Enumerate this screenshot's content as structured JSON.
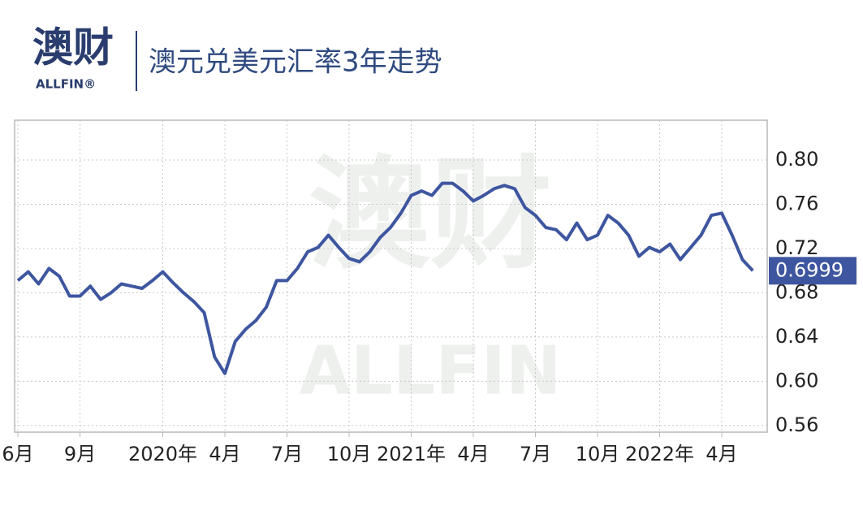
{
  "logo": {
    "name": "澳财",
    "brand": "ALLFIN®"
  },
  "chart_data": {
    "type": "line",
    "title": "澳元兑美元汇率3年走势",
    "watermark": [
      "澳财",
      "ALLFIN"
    ],
    "categories": [
      "6月",
      null,
      null,
      null,
      null,
      null,
      "9月",
      null,
      null,
      null,
      null,
      null,
      null,
      null,
      "2020年",
      null,
      null,
      null,
      null,
      null,
      "4月",
      null,
      null,
      null,
      null,
      null,
      "7月",
      null,
      null,
      null,
      null,
      null,
      "10月",
      null,
      null,
      null,
      null,
      null,
      "2021年",
      null,
      null,
      null,
      null,
      null,
      "4月",
      null,
      null,
      null,
      null,
      null,
      "7月",
      null,
      null,
      null,
      null,
      null,
      "10月",
      null,
      null,
      null,
      null,
      null,
      "2022年",
      null,
      null,
      null,
      null,
      null,
      "4月",
      null,
      null,
      null
    ],
    "series": [
      {
        "color": "#3e56a0",
        "values": [
          0.691,
          0.699,
          0.688,
          0.702,
          0.695,
          0.677,
          0.677,
          0.686,
          0.674,
          0.68,
          0.688,
          0.686,
          0.684,
          0.691,
          0.699,
          0.689,
          0.68,
          0.672,
          0.662,
          0.622,
          0.607,
          0.636,
          0.647,
          0.655,
          0.667,
          0.691,
          0.691,
          0.702,
          0.717,
          0.721,
          0.732,
          0.721,
          0.711,
          0.708,
          0.717,
          0.73,
          0.739,
          0.752,
          0.768,
          0.772,
          0.768,
          0.779,
          0.779,
          0.772,
          0.763,
          0.768,
          0.774,
          0.777,
          0.774,
          0.757,
          0.75,
          0.739,
          0.737,
          0.728,
          0.743,
          0.728,
          0.732,
          0.75,
          0.743,
          0.732,
          0.713,
          0.721,
          0.717,
          0.724,
          0.71,
          0.721,
          0.732,
          0.75,
          0.752,
          0.732,
          0.71,
          0.6999
        ]
      }
    ],
    "ylim": [
      0.554,
      0.836
    ],
    "yticks": [
      {
        "value": 0.56,
        "label": "0.56"
      },
      {
        "value": 0.6,
        "label": "0.60"
      },
      0.64,
      0.68,
      0.72,
      0.76,
      {
        "value": 0.8,
        "label": "0.80"
      }
    ],
    "grid": true
  }
}
